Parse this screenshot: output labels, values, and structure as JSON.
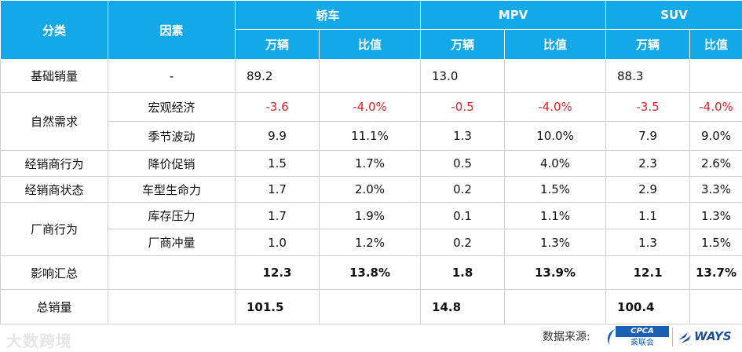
{
  "header": {
    "col_category": "分类",
    "col_factor": "因素",
    "groups": [
      "轿车",
      "MPV",
      "SUV"
    ],
    "unit_label": "万辆",
    "ratio_label": "比值"
  },
  "rows": [
    {
      "category": "基础销量",
      "factor": "-",
      "cells": [
        "89.2",
        "",
        "13.0",
        "",
        "88.3",
        ""
      ]
    },
    {
      "category": "自然需求",
      "factor": "宏观经济",
      "cells": [
        "-3.6",
        "-4.0%",
        "-0.5",
        "-4.0%",
        "-3.5",
        "-4.0%"
      ]
    },
    {
      "category": "",
      "factor": "季节波动",
      "cells": [
        "9.9",
        "11.1%",
        "1.3",
        "10.0%",
        "7.9",
        "9.0%"
      ]
    },
    {
      "category": "经销商行为",
      "factor": "降价促销",
      "cells": [
        "1.5",
        "1.7%",
        "0.5",
        "4.0%",
        "2.3",
        "2.6%"
      ]
    },
    {
      "category": "经销商状态",
      "factor": "车型生命力",
      "cells": [
        "1.7",
        "2.0%",
        "0.2",
        "1.5%",
        "2.9",
        "3.3%"
      ]
    },
    {
      "category": "厂商行为",
      "factor": "库存压力",
      "cells": [
        "1.7",
        "1.9%",
        "0.1",
        "1.1%",
        "1.1",
        "1.3%"
      ]
    },
    {
      "category": "",
      "factor": "厂商冲量",
      "cells": [
        "1.0",
        "1.2%",
        "0.2",
        "1.3%",
        "1.3",
        "1.5%"
      ]
    },
    {
      "category": "影响汇总",
      "factor": "",
      "cells": [
        "12.3",
        "13.8%",
        "1.8",
        "13.9%",
        "12.1",
        "13.7%"
      ]
    },
    {
      "category": "总销量",
      "factor": "",
      "cells": [
        "101.5",
        "",
        "14.8",
        "",
        "100.4",
        ""
      ]
    }
  ],
  "colors": {
    "header_bg": "#13a9e8",
    "negative": "#e21f26"
  },
  "footer": {
    "watermark": "大数跨境",
    "source_label": "数据来源:",
    "cpca_logo": "CPCA",
    "cpca_sub": "乘联会",
    "ways_logo": "WAYS"
  }
}
